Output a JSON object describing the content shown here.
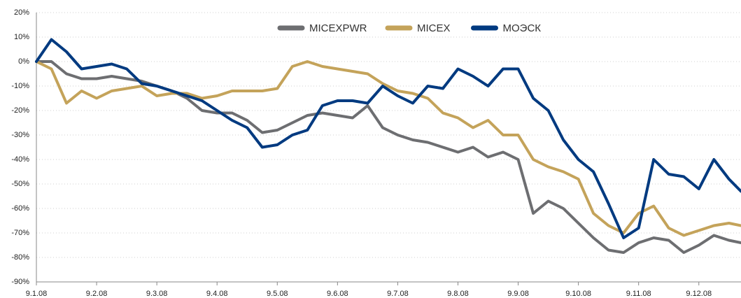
{
  "chart_data": {
    "type": "line",
    "x": [
      0,
      0.25,
      0.5,
      0.75,
      1,
      1.25,
      1.5,
      1.75,
      2,
      2.25,
      2.5,
      2.75,
      3,
      3.25,
      3.5,
      3.75,
      4,
      4.25,
      4.5,
      4.75,
      5,
      5.25,
      5.5,
      5.75,
      6,
      6.25,
      6.5,
      6.75,
      7,
      7.25,
      7.5,
      7.75,
      8,
      8.25,
      8.5,
      8.75,
      9,
      9.25,
      9.5,
      9.75,
      10,
      10.25,
      10.5,
      10.75,
      11,
      11.25,
      11.5,
      11.7
    ],
    "series": [
      {
        "name": "MICEXPWR",
        "color": "#6d6e71",
        "values": [
          0,
          0,
          -5,
          -7,
          -7,
          -6,
          -7,
          -8,
          -10,
          -12,
          -15,
          -20,
          -21,
          -21,
          -24,
          -29,
          -28,
          -25,
          -22,
          -21,
          -22,
          -23,
          -18,
          -27,
          -30,
          -32,
          -33,
          -35,
          -37,
          -35,
          -39,
          -37,
          -40,
          -62,
          -57,
          -60,
          -66,
          -72,
          -77,
          -78,
          -74,
          -72,
          -73,
          -78,
          -75,
          -71,
          -73,
          -74
        ]
      },
      {
        "name": "MICEX",
        "color": "#c4a35a",
        "values": [
          0,
          -3,
          -17,
          -12,
          -15,
          -12,
          -11,
          -10,
          -14,
          -13,
          -13,
          -15,
          -14,
          -12,
          -12,
          -12,
          -11,
          -2,
          0,
          -2,
          -3,
          -4,
          -5,
          -9,
          -12,
          -13,
          -15,
          -21,
          -23,
          -27,
          -24,
          -30,
          -30,
          -40,
          -43,
          -45,
          -48,
          -62,
          -67,
          -70,
          -62,
          -59,
          -68,
          -71,
          -69,
          -67,
          -66,
          -67
        ]
      },
      {
        "name": "МОЭСК",
        "color": "#003a80",
        "values": [
          0,
          9,
          4,
          -3,
          -2,
          -1,
          -3,
          -9,
          -10,
          -12,
          -14,
          -16,
          -20,
          -24,
          -27,
          -35,
          -34,
          -30,
          -28,
          -18,
          -16,
          -16,
          -17,
          -10,
          -14,
          -17,
          -10,
          -11,
          -3,
          -6,
          -10,
          -3,
          -3,
          -15,
          -20,
          -32,
          -40,
          -45,
          -58,
          -72,
          -68,
          -40,
          -46,
          -47,
          -52,
          -40,
          -48,
          -53
        ]
      }
    ],
    "xlim": [
      0,
      11.7
    ],
    "xticks": [
      {
        "value": 0,
        "label": "9.1.08"
      },
      {
        "value": 1,
        "label": "9.2.08"
      },
      {
        "value": 2,
        "label": "9.3.08"
      },
      {
        "value": 3,
        "label": "9.4.08"
      },
      {
        "value": 4,
        "label": "9.5.08"
      },
      {
        "value": 5,
        "label": "9.6.08"
      },
      {
        "value": 6,
        "label": "9.7.08"
      },
      {
        "value": 7,
        "label": "9.8.08"
      },
      {
        "value": 8,
        "label": "9.9.08"
      },
      {
        "value": 9,
        "label": "9.10.08"
      },
      {
        "value": 10,
        "label": "9.11.08"
      },
      {
        "value": 11,
        "label": "9.12.08"
      }
    ],
    "ylim": [
      -90,
      20
    ],
    "yticks": [
      {
        "value": 20,
        "label": "20%"
      },
      {
        "value": 10,
        "label": "10%"
      },
      {
        "value": 0,
        "label": "0%"
      },
      {
        "value": -10,
        "label": "-10%"
      },
      {
        "value": -20,
        "label": "-20%"
      },
      {
        "value": -30,
        "label": "-30%"
      },
      {
        "value": -40,
        "label": "-40%"
      },
      {
        "value": -50,
        "label": "-50%"
      },
      {
        "value": -60,
        "label": "-60%"
      },
      {
        "value": -70,
        "label": "-70%"
      },
      {
        "value": -80,
        "label": "-80%"
      },
      {
        "value": -90,
        "label": "-90%"
      }
    ],
    "grid": true,
    "legend": "top"
  }
}
